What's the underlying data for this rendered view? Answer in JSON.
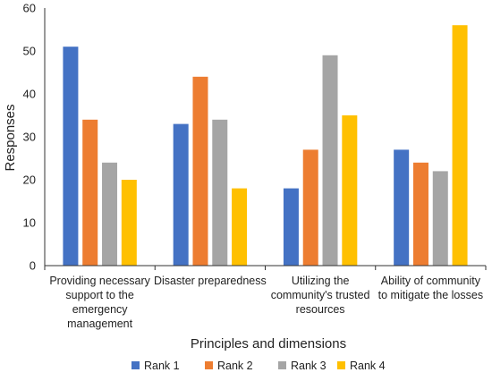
{
  "chart_data": {
    "type": "bar",
    "xlabel": "Principles and dimensions",
    "ylabel": "Responses",
    "ylim": [
      0,
      60
    ],
    "yticks": [
      0,
      10,
      20,
      30,
      40,
      50,
      60
    ],
    "grid": false,
    "legend_position": "bottom",
    "categories": [
      [
        "Providing necessary",
        "support to the",
        "emergency",
        "management"
      ],
      [
        "Disaster preparedness"
      ],
      [
        "Utilizing the",
        "community's trusted",
        "resources"
      ],
      [
        "Ability of community",
        "to mitigate the losses"
      ]
    ],
    "series": [
      {
        "name": "Rank 1",
        "color": "#4472C4",
        "values": [
          51,
          33,
          18,
          27
        ]
      },
      {
        "name": "Rank 2",
        "color": "#ED7D31",
        "values": [
          34,
          44,
          27,
          24
        ]
      },
      {
        "name": "Rank 3",
        "color": "#A5A5A5",
        "values": [
          24,
          34,
          49,
          22
        ]
      },
      {
        "name": "Rank 4",
        "color": "#FFC000",
        "values": [
          20,
          18,
          35,
          56
        ]
      }
    ]
  }
}
